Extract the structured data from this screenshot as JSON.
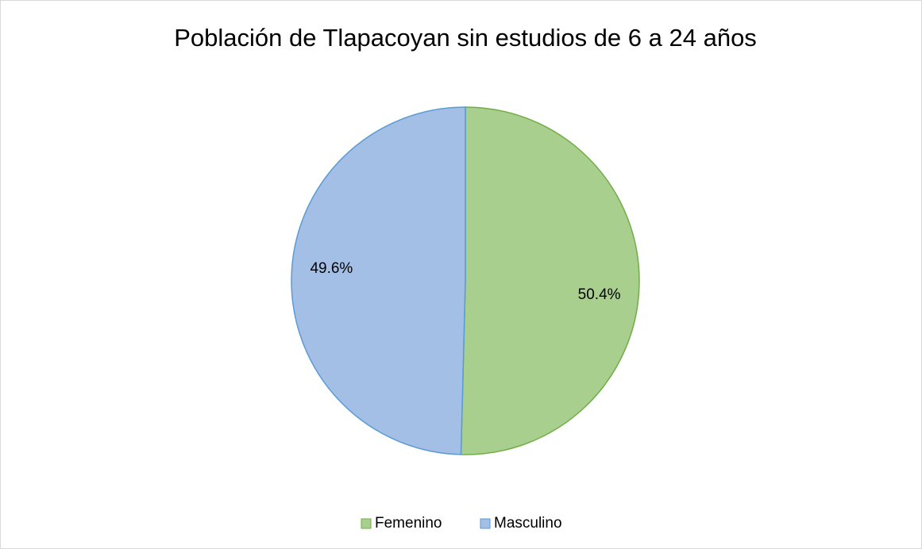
{
  "chart_data": {
    "type": "pie",
    "title": "Población de Tlapacoyan  sin estudios de 6 a 24 años",
    "categories": [
      "Femenino",
      "Masculino"
    ],
    "values": [
      50.4,
      49.6
    ],
    "value_labels": [
      "50.4%",
      "49.6%"
    ],
    "colors": [
      "#a9cf8f",
      "#a3bfe5"
    ],
    "edge_colors": [
      "#70ad47",
      "#5b9bd5"
    ],
    "legend": "bottom"
  }
}
